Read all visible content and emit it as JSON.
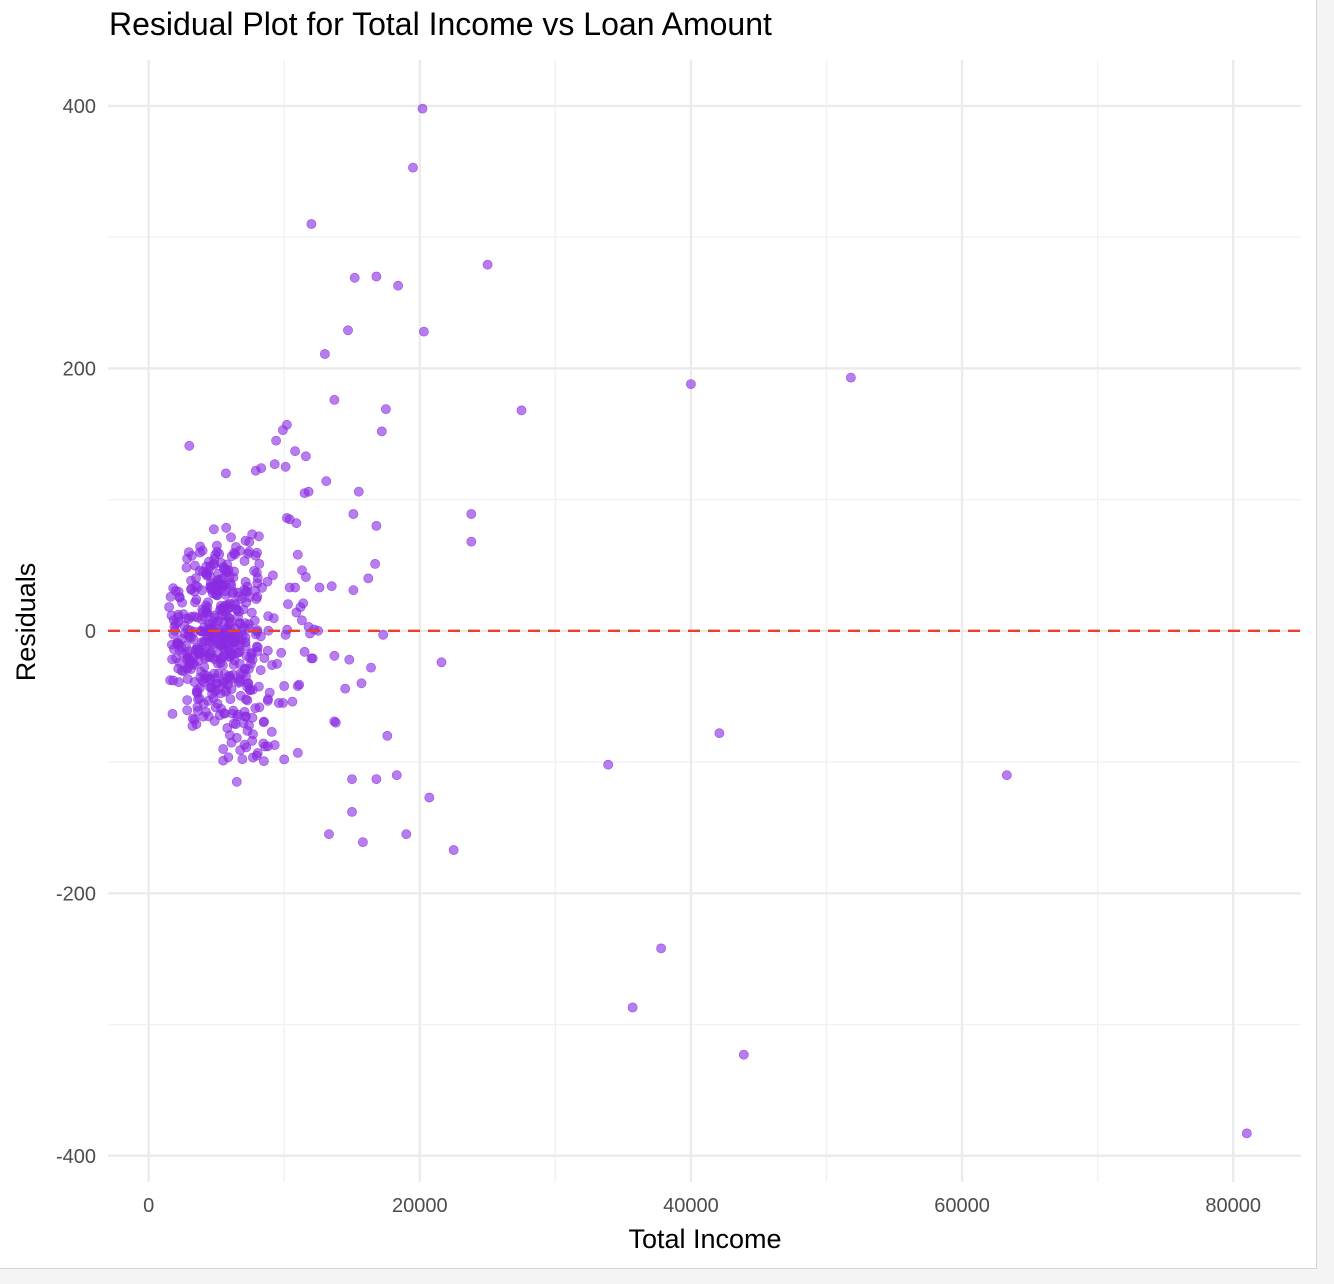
{
  "chart_data": {
    "type": "scatter",
    "title": "Residual Plot for Total Income vs Loan Amount",
    "xlabel": "Total Income",
    "ylabel": "Residuals",
    "xlim": [
      -3000,
      85000
    ],
    "ylim": [
      -420,
      435
    ],
    "x_ticks": [
      0,
      20000,
      40000,
      60000,
      80000
    ],
    "x_tick_labels": [
      "0",
      "20000",
      "40000",
      "60000",
      "80000"
    ],
    "x_minor": [
      10000,
      30000,
      50000,
      70000
    ],
    "y_ticks": [
      -400,
      -200,
      0,
      200,
      400
    ],
    "y_tick_labels": [
      "-400",
      "-200",
      "0",
      "200",
      "400"
    ],
    "y_minor": [
      -300,
      -100,
      100,
      300
    ],
    "reference_line": {
      "y": 0,
      "style": "dashed",
      "color": "#e8412e"
    },
    "point_color": "#8a2be2",
    "grid": true,
    "outliers": [
      [
        20200,
        398
      ],
      [
        19500,
        353
      ],
      [
        12000,
        310
      ],
      [
        25000,
        279
      ],
      [
        15200,
        269
      ],
      [
        16800,
        270
      ],
      [
        18400,
        263
      ],
      [
        14700,
        229
      ],
      [
        20300,
        228
      ],
      [
        13000,
        211
      ],
      [
        40000,
        188
      ],
      [
        51800,
        193
      ],
      [
        27500,
        168
      ],
      [
        13700,
        176
      ],
      [
        17500,
        169
      ],
      [
        17200,
        152
      ],
      [
        3000,
        141
      ],
      [
        10200,
        157
      ],
      [
        9900,
        153
      ],
      [
        10800,
        137
      ],
      [
        11600,
        133
      ],
      [
        9400,
        145
      ],
      [
        5700,
        120
      ],
      [
        7900,
        122
      ],
      [
        8300,
        124
      ],
      [
        9300,
        127
      ],
      [
        10100,
        125
      ],
      [
        13100,
        114
      ],
      [
        11500,
        105
      ],
      [
        11800,
        106
      ],
      [
        15500,
        106
      ],
      [
        15100,
        89
      ],
      [
        23800,
        89
      ],
      [
        16800,
        80
      ],
      [
        23800,
        68
      ],
      [
        16700,
        51
      ],
      [
        16200,
        40
      ],
      [
        15100,
        31
      ],
      [
        13500,
        34
      ],
      [
        12600,
        33
      ],
      [
        17300,
        -3
      ],
      [
        21600,
        -24
      ],
      [
        16400,
        -28
      ],
      [
        14800,
        -22
      ],
      [
        12000,
        -21
      ],
      [
        13700,
        -19
      ],
      [
        15700,
        -40
      ],
      [
        14500,
        -44
      ],
      [
        13700,
        -69
      ],
      [
        13800,
        -70
      ],
      [
        17600,
        -80
      ],
      [
        11000,
        -93
      ],
      [
        10000,
        -98
      ],
      [
        9300,
        -87
      ],
      [
        8800,
        -88
      ],
      [
        6500,
        -115
      ],
      [
        15000,
        -113
      ],
      [
        16800,
        -113
      ],
      [
        18300,
        -110
      ],
      [
        20700,
        -127
      ],
      [
        15000,
        -138
      ],
      [
        13300,
        -155
      ],
      [
        15800,
        -161
      ],
      [
        19000,
        -155
      ],
      [
        22500,
        -167
      ],
      [
        33900,
        -102
      ],
      [
        42100,
        -78
      ],
      [
        63300,
        -110
      ],
      [
        37800,
        -242
      ],
      [
        35700,
        -287
      ],
      [
        43900,
        -323
      ],
      [
        81000,
        -383
      ],
      [
        11100,
        -41
      ],
      [
        11000,
        -42
      ],
      [
        10000,
        -42
      ],
      [
        10600,
        -54
      ],
      [
        9900,
        -55
      ],
      [
        9600,
        -55
      ],
      [
        9100,
        -26
      ],
      [
        8800,
        -52
      ],
      [
        10100,
        -3
      ],
      [
        11500,
        -16
      ],
      [
        12100,
        -21
      ],
      [
        11900,
        -2
      ],
      [
        12200,
        1
      ],
      [
        11800,
        3
      ],
      [
        11300,
        8
      ],
      [
        10900,
        14
      ],
      [
        11200,
        18
      ],
      [
        11400,
        21
      ],
      [
        12500,
        0
      ],
      [
        11600,
        41
      ],
      [
        11000,
        58
      ],
      [
        10400,
        33
      ],
      [
        10800,
        33
      ],
      [
        10400,
        85
      ],
      [
        10900,
        82
      ],
      [
        10200,
        86
      ]
    ],
    "cluster": {
      "x_center": 5200,
      "x_spread": 1900,
      "y_center": -3,
      "y_spread": 38,
      "count": 480
    }
  }
}
